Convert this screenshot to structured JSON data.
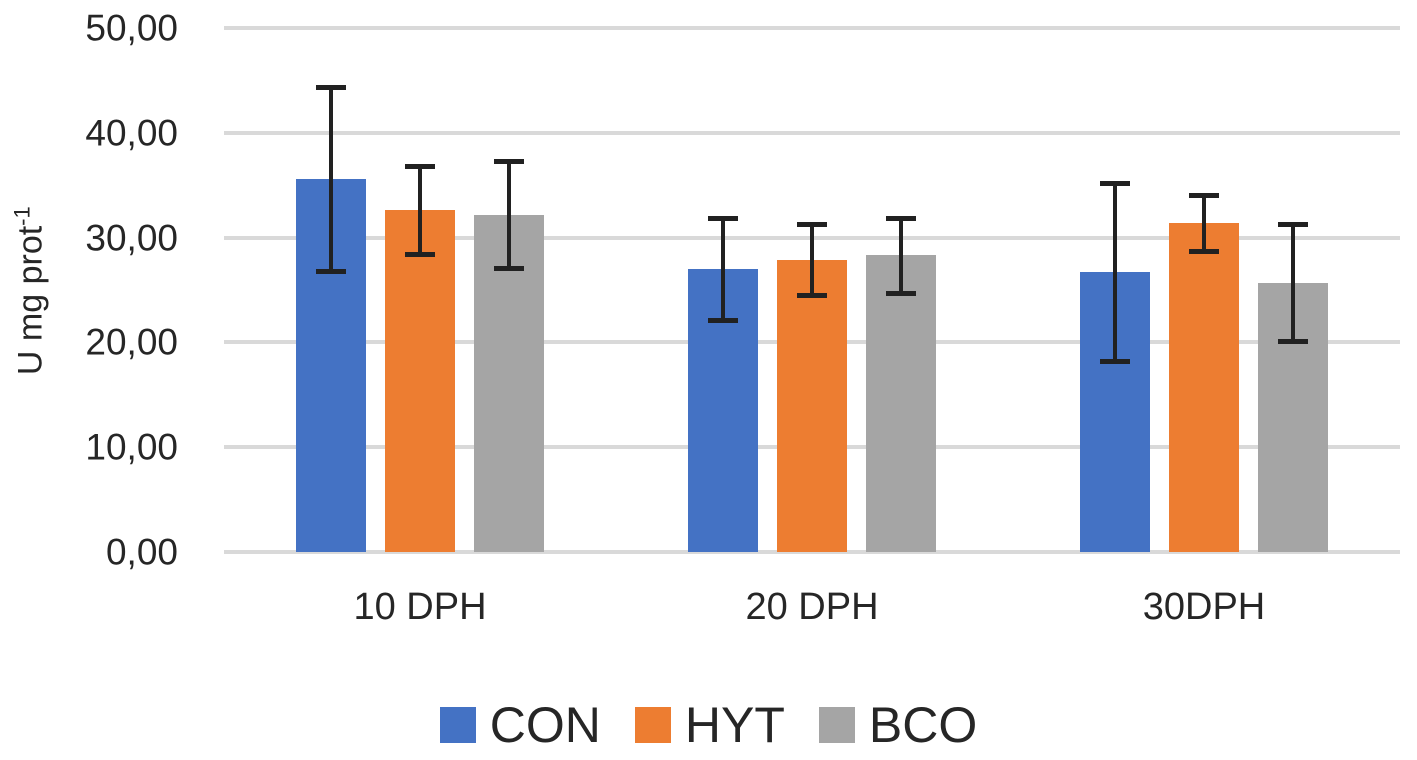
{
  "chart_data": {
    "type": "bar",
    "title": "",
    "categories": [
      "10 DPH",
      "20 DPH",
      "30DPH"
    ],
    "series": [
      {
        "name": "CON",
        "color": "#4472C4",
        "values": [
          35.6,
          27.0,
          26.7
        ],
        "errors": [
          8.8,
          4.9,
          8.5
        ]
      },
      {
        "name": "HYT",
        "color": "#ED7D31",
        "values": [
          32.6,
          27.9,
          31.4
        ],
        "errors": [
          4.2,
          3.4,
          2.7
        ]
      },
      {
        "name": "BCO",
        "color": "#A5A5A5",
        "values": [
          32.2,
          28.3,
          25.7
        ],
        "errors": [
          5.1,
          3.6,
          5.6
        ]
      }
    ],
    "ylabel": "U mg prot",
    "ylabel_superscript": "-1",
    "ylim": [
      0,
      50
    ],
    "ytick_step": 10,
    "yticks": [
      0,
      10,
      20,
      30,
      40,
      50
    ],
    "ytick_labels": [
      "0,00",
      "10,00",
      "20,00",
      "30,00",
      "40,00",
      "50,00"
    ],
    "grid": true,
    "gridline_color": "#d9d9d9",
    "error_bar_color": "#212121",
    "legend_position": "bottom",
    "legend_entries": [
      "CON",
      "HYT",
      "BCO"
    ]
  }
}
